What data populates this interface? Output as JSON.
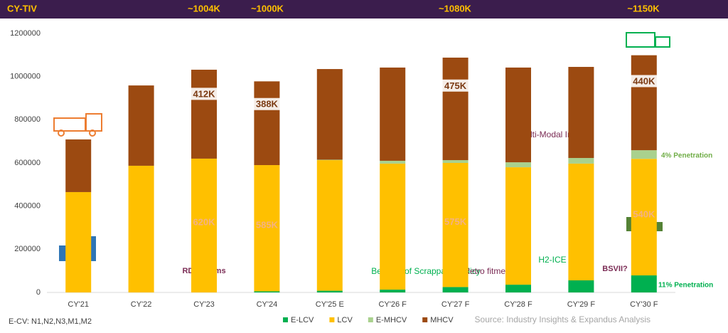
{
  "chart_data": {
    "type": "bar",
    "stacked": true,
    "title": "CY-TIV",
    "categories": [
      "CY'21",
      "CY'22",
      "CY'23",
      "CY'24",
      "CY'25 E",
      "CY'26 F",
      "CY'27 F",
      "CY'28 F",
      "CY'29 F",
      "CY'30 F"
    ],
    "series": [
      {
        "name": "E-LCV",
        "color": "#00b050",
        "values": [
          0,
          0,
          0,
          5000,
          8000,
          13000,
          25000,
          36000,
          56000,
          79000
        ]
      },
      {
        "name": "LCV",
        "color": "#ffc000",
        "values": [
          465000,
          587000,
          620000,
          585000,
          605000,
          584000,
          575000,
          544000,
          541000,
          540000
        ],
        "value_labels": [
          null,
          null,
          "620K",
          "585K",
          null,
          null,
          "575K",
          null,
          null,
          "540K"
        ]
      },
      {
        "name": "E-MHCV",
        "color": "#a9d18e",
        "values": [
          0,
          0,
          0,
          0,
          2000,
          13000,
          13000,
          23000,
          26000,
          40000
        ]
      },
      {
        "name": "MHCV",
        "color": "#9c4a11",
        "values": [
          244000,
          372000,
          412000,
          388000,
          420000,
          432000,
          475000,
          439000,
          422000,
          440000
        ],
        "value_labels": [
          null,
          null,
          "412K",
          "388K",
          null,
          null,
          "475K",
          null,
          null,
          "440K"
        ]
      }
    ],
    "ylim": [
      0,
      1200000
    ],
    "yticks": [
      0,
      200000,
      400000,
      600000,
      800000,
      1000000,
      1200000
    ],
    "grid": false,
    "annotations": [
      "~1004K",
      "~1000K",
      "~1080K",
      "~1150K",
      "RDE Norms",
      "Benefits of Scrappage Policy",
      "Retro fitment?",
      "H2-ICE",
      "BSVII?",
      "Multi-Modal Impact",
      "4% Penetration",
      "11% Penetration",
      "E-CV: N1,N2,N3,M1,M2",
      "Source: Industry Insights & Expandus Analysis"
    ]
  }
}
